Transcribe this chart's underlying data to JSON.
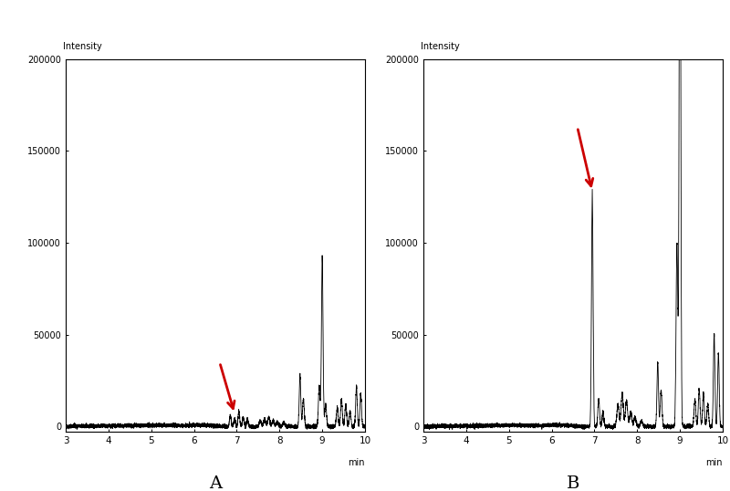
{
  "background_color": "#ffffff",
  "xlim": [
    3,
    10
  ],
  "ylim": [
    -3000,
    200000
  ],
  "yticks": [
    0,
    50000,
    100000,
    150000,
    200000
  ],
  "ytick_labels": [
    "0",
    "50000",
    "100000",
    "150000",
    "200000"
  ],
  "xticks": [
    3,
    4,
    5,
    6,
    7,
    8,
    9,
    10
  ],
  "ylabel": "Intensity",
  "xlabel": "min",
  "label_A": "A",
  "label_B": "B",
  "line_color": "#000000",
  "arrow_color": "#cc0000",
  "figsize": [
    8.0,
    5.38
  ],
  "dpi": 100
}
